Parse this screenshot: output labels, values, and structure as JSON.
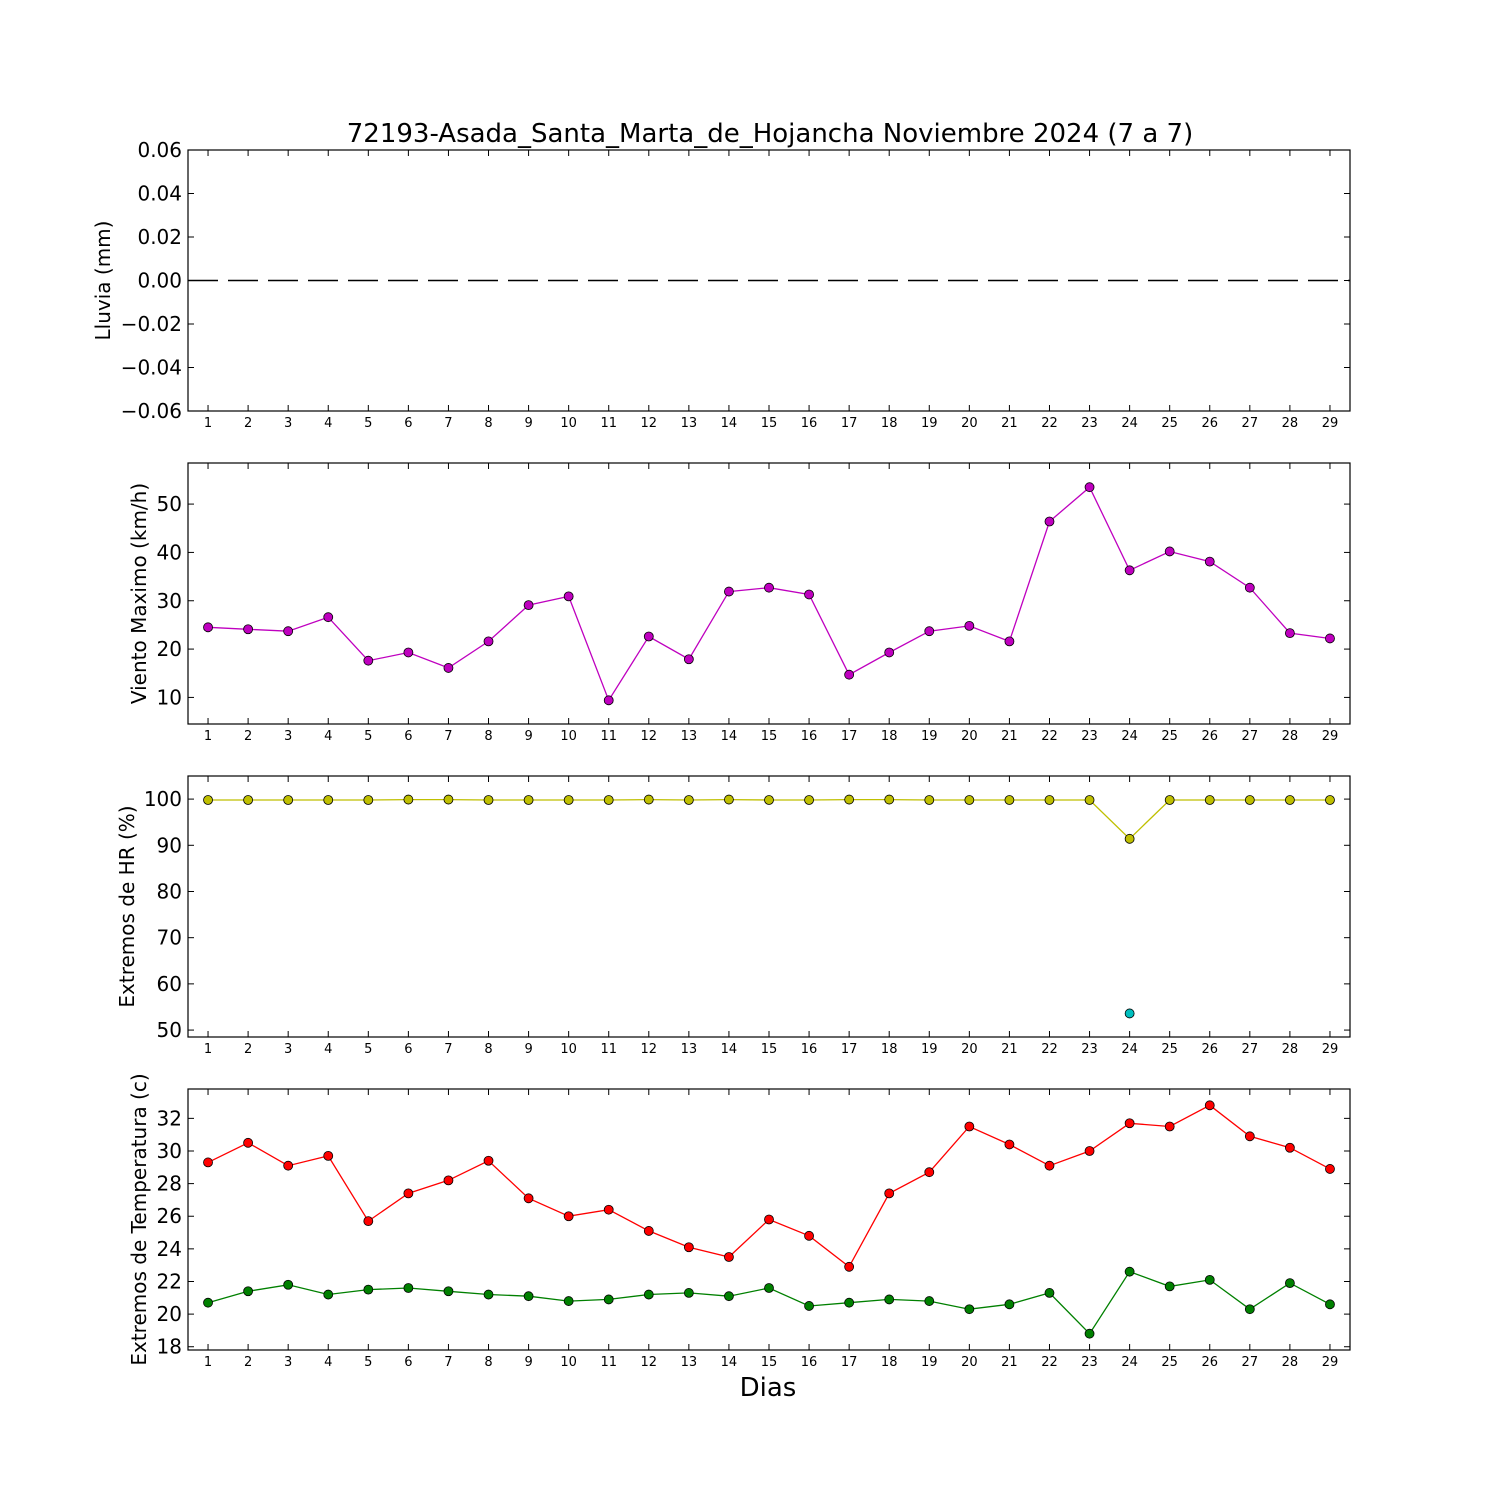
{
  "title": "72193-Asada_Santa_Marta_de_Hojancha Noviembre 2024  (7 a 7)",
  "xlabel": "Dias",
  "chart_data": [
    {
      "type": "line",
      "ylabel": "Lluvia (mm)",
      "ylim": [
        -0.06,
        0.06
      ],
      "yticks": [
        0.06,
        0.04,
        0.02,
        0.0,
        -0.02,
        -0.04,
        -0.06
      ],
      "ytick_labels": [
        "0.06",
        "0.04",
        "0.02",
        "0.00",
        "−0.02",
        "−0.04",
        "−0.06"
      ],
      "x": [
        1,
        2,
        3,
        4,
        5,
        6,
        7,
        8,
        9,
        10,
        11,
        12,
        13,
        14,
        15,
        16,
        17,
        18,
        19,
        20,
        21,
        22,
        23,
        24,
        25,
        26,
        27,
        28,
        29
      ],
      "series": [
        {
          "color": "#000000",
          "style": "dashed",
          "marker": false,
          "values": [
            0,
            0,
            0,
            0,
            0,
            0,
            0,
            0,
            0,
            0,
            0,
            0,
            0,
            0,
            0,
            0,
            0,
            0,
            0,
            0,
            0,
            0,
            0,
            0,
            0,
            0,
            0,
            0,
            0
          ]
        }
      ]
    },
    {
      "type": "line",
      "ylabel": "Viento Maximo (km/h)",
      "ylim": [
        4.5,
        58.5
      ],
      "yticks": [
        10,
        20,
        30,
        40,
        50
      ],
      "ytick_labels": [
        "10",
        "20",
        "30",
        "40",
        "50"
      ],
      "x": [
        1,
        2,
        3,
        4,
        5,
        6,
        7,
        8,
        9,
        10,
        11,
        12,
        13,
        14,
        15,
        16,
        17,
        18,
        19,
        20,
        21,
        22,
        23,
        24,
        25,
        26,
        27,
        28,
        29
      ],
      "series": [
        {
          "color": "#bf00bf",
          "style": "solid",
          "marker": true,
          "values": [
            24.5,
            24.1,
            23.7,
            26.6,
            17.6,
            19.3,
            16.1,
            21.6,
            29.1,
            30.9,
            9.4,
            22.6,
            17.9,
            31.9,
            32.7,
            31.3,
            14.7,
            19.3,
            23.7,
            24.8,
            21.6,
            46.4,
            53.5,
            36.3,
            40.2,
            38.1,
            32.7,
            23.3,
            22.2
          ]
        }
      ]
    },
    {
      "type": "line",
      "ylabel": "Extremos de HR (%)",
      "ylim": [
        48.5,
        105
      ],
      "yticks": [
        50,
        60,
        70,
        80,
        90,
        100
      ],
      "ytick_labels": [
        "50",
        "60",
        "70",
        "80",
        "90",
        "100"
      ],
      "x": [
        1,
        2,
        3,
        4,
        5,
        6,
        7,
        8,
        9,
        10,
        11,
        12,
        13,
        14,
        15,
        16,
        17,
        18,
        19,
        20,
        21,
        22,
        23,
        24,
        25,
        26,
        27,
        28,
        29
      ],
      "series": [
        {
          "color": "#bfbf00",
          "style": "solid",
          "marker": true,
          "values": [
            99.8,
            99.8,
            99.8,
            99.8,
            99.8,
            99.9,
            99.9,
            99.8,
            99.8,
            99.8,
            99.8,
            99.9,
            99.8,
            99.9,
            99.8,
            99.8,
            99.9,
            99.9,
            99.8,
            99.8,
            99.8,
            99.8,
            99.8,
            91.4,
            99.8,
            99.8,
            99.8,
            99.8,
            99.8
          ]
        },
        {
          "color": "#00bfbf",
          "style": "solid",
          "marker": true,
          "values": [
            null,
            null,
            null,
            null,
            null,
            null,
            null,
            null,
            null,
            null,
            null,
            null,
            null,
            null,
            null,
            null,
            null,
            null,
            null,
            null,
            null,
            null,
            null,
            53.6,
            null,
            null,
            null,
            null,
            null
          ]
        }
      ]
    },
    {
      "type": "line",
      "ylabel": "Extremos de Temperatura (c)",
      "ylim": [
        17.8,
        33.8
      ],
      "yticks": [
        18,
        20,
        22,
        24,
        26,
        28,
        30,
        32
      ],
      "ytick_labels": [
        "18",
        "20",
        "22",
        "24",
        "26",
        "28",
        "30",
        "32"
      ],
      "x": [
        1,
        2,
        3,
        4,
        5,
        6,
        7,
        8,
        9,
        10,
        11,
        12,
        13,
        14,
        15,
        16,
        17,
        18,
        19,
        20,
        21,
        22,
        23,
        24,
        25,
        26,
        27,
        28,
        29
      ],
      "series": [
        {
          "color": "#ff0000",
          "style": "solid",
          "marker": true,
          "values": [
            29.3,
            30.5,
            29.1,
            29.7,
            25.7,
            27.4,
            28.2,
            29.4,
            27.1,
            26.0,
            26.4,
            25.1,
            24.1,
            23.5,
            25.8,
            24.8,
            22.9,
            27.4,
            28.7,
            31.5,
            30.4,
            29.1,
            30.0,
            31.7,
            31.5,
            32.8,
            30.9,
            30.2,
            28.9
          ]
        },
        {
          "color": "#008000",
          "style": "solid",
          "marker": true,
          "values": [
            20.7,
            21.4,
            21.8,
            21.2,
            21.5,
            21.6,
            21.4,
            21.2,
            21.1,
            20.8,
            20.9,
            21.2,
            21.3,
            21.1,
            21.6,
            20.5,
            20.7,
            20.9,
            20.8,
            20.3,
            20.6,
            21.3,
            18.8,
            22.6,
            21.7,
            22.1,
            20.3,
            21.9,
            20.6
          ]
        }
      ]
    }
  ]
}
